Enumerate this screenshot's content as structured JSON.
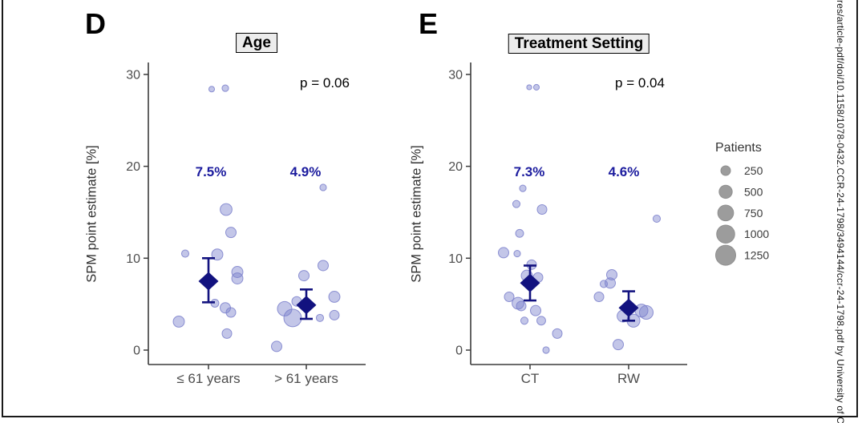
{
  "watermark_text": "res/article-pdf/doi/10.1158/1078-0432.CCR-24-1798/3494144/ccr-24-1798.pdf by University of C",
  "colors": {
    "bubble": "#7b80cb",
    "navy": "#12127f",
    "pct_label": "#1b1b9e",
    "axis": "#3c3c3c",
    "tick_label": "#4d4d4d",
    "title_bg": "#ececec",
    "legend_circle": "#9c9c9c",
    "legend_circle_border": "#8f8f8f",
    "border": "#1a1a1a"
  },
  "legend": {
    "title": "Patients",
    "items": [
      250,
      500,
      750,
      1000,
      1250
    ]
  },
  "chart_data": [
    {
      "type": "scatter",
      "panel_label": "D",
      "title": "Age",
      "p_value": "p = 0.06",
      "ylabel": "SPM point estimate [%]",
      "yticks": [
        0,
        10,
        20,
        30
      ],
      "ylim": [
        -1.5,
        31
      ],
      "legend_position": "right",
      "point_note": "points are [spm_percent, patients, jitter_px]",
      "groups": [
        {
          "category": "≤ 61 years",
          "mean_label": "7.5%",
          "mean": 7.5,
          "ci": [
            5.2,
            10.0
          ],
          "points": [
            [
              28.4,
              70,
              4
            ],
            [
              28.5,
              100,
              21
            ],
            [
              15.3,
              400,
              22
            ],
            [
              12.8,
              300,
              28
            ],
            [
              10.5,
              130,
              -29
            ],
            [
              10.4,
              350,
              11
            ],
            [
              8.5,
              350,
              36
            ],
            [
              7.8,
              350,
              36
            ],
            [
              5.1,
              160,
              8
            ],
            [
              4.6,
              300,
              21
            ],
            [
              4.1,
              250,
              28
            ],
            [
              3.1,
              350,
              -37
            ],
            [
              1.8,
              250,
              23
            ]
          ]
        },
        {
          "category": "> 61 years",
          "mean_label": "4.9%",
          "mean": 4.9,
          "ci": [
            3.4,
            6.6
          ],
          "points": [
            [
              17.7,
              100,
              21
            ],
            [
              9.2,
              300,
              21
            ],
            [
              8.1,
              300,
              -3
            ],
            [
              5.8,
              350,
              35
            ],
            [
              5.3,
              250,
              -12
            ],
            [
              4.5,
              620,
              -27
            ],
            [
              3.5,
              950,
              -17
            ],
            [
              3.5,
              130,
              17
            ],
            [
              3.8,
              250,
              35
            ],
            [
              0.4,
              300,
              -37
            ]
          ]
        }
      ]
    },
    {
      "type": "scatter",
      "panel_label": "E",
      "title": "Treatment Setting",
      "p_value": "p = 0.04",
      "ylabel": "SPM point estimate [%]",
      "yticks": [
        0,
        10,
        20,
        30
      ],
      "ylim": [
        -1.5,
        31
      ],
      "legend_position": "right",
      "point_note": "points are [spm_percent, patients, jitter_px]",
      "groups": [
        {
          "category": "CT",
          "mean_label": "7.3%",
          "mean": 7.3,
          "ci": [
            5.4,
            9.2
          ],
          "points": [
            [
              28.6,
              50,
              -1
            ],
            [
              28.6,
              70,
              8
            ],
            [
              17.6,
              100,
              -9
            ],
            [
              15.9,
              130,
              -17
            ],
            [
              15.3,
              250,
              15
            ],
            [
              12.7,
              160,
              -13
            ],
            [
              10.6,
              300,
              -33
            ],
            [
              10.5,
              100,
              -16
            ],
            [
              9.3,
              250,
              2
            ],
            [
              8.1,
              350,
              -4
            ],
            [
              7.9,
              250,
              10
            ],
            [
              5.8,
              250,
              -26
            ],
            [
              5.1,
              400,
              -15
            ],
            [
              4.8,
              250,
              -11
            ],
            [
              4.3,
              300,
              7
            ],
            [
              3.2,
              130,
              -7
            ],
            [
              3.2,
              200,
              14
            ],
            [
              1.8,
              250,
              34
            ],
            [
              0.0,
              100,
              20
            ]
          ]
        },
        {
          "category": "RW",
          "mean_label": "4.6%",
          "mean": 4.6,
          "ci": [
            3.2,
            6.4
          ],
          "points": [
            [
              14.3,
              130,
              35
            ],
            [
              8.2,
              300,
              -21
            ],
            [
              7.3,
              300,
              -23
            ],
            [
              7.2,
              130,
              -31
            ],
            [
              5.8,
              250,
              -37
            ],
            [
              4.3,
              480,
              16
            ],
            [
              4.1,
              550,
              22
            ],
            [
              3.7,
              400,
              -7
            ],
            [
              3.2,
              480,
              6
            ],
            [
              0.6,
              300,
              -13
            ]
          ]
        }
      ]
    }
  ]
}
